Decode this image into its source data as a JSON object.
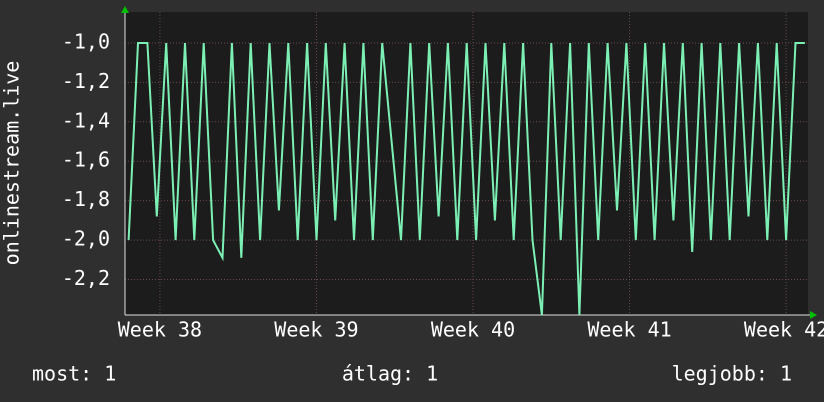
{
  "chart_data": {
    "type": "line",
    "y_label": "onlinestream.live",
    "x": [
      37.8,
      37.86,
      37.92,
      37.98,
      38.04,
      38.1,
      38.16,
      38.22,
      38.28,
      38.34,
      38.4,
      38.46,
      38.52,
      38.58,
      38.64,
      38.7,
      38.76,
      38.82,
      38.88,
      38.94,
      39.0,
      39.06,
      39.12,
      39.18,
      39.24,
      39.3,
      39.36,
      39.42,
      39.48,
      39.54,
      39.6,
      39.66,
      39.72,
      39.78,
      39.84,
      39.9,
      39.96,
      40.02,
      40.08,
      40.14,
      40.2,
      40.26,
      40.32,
      40.38,
      40.44,
      40.5,
      40.56,
      40.62,
      40.68,
      40.74,
      40.8,
      40.86,
      40.92,
      40.98,
      41.04,
      41.1,
      41.16,
      41.22,
      41.28,
      41.34,
      41.4,
      41.46,
      41.52,
      41.58,
      41.64,
      41.7,
      41.76,
      41.82,
      41.88,
      41.94,
      42.0,
      42.06,
      42.12
    ],
    "series": [
      {
        "color": "#7cf0b4",
        "values": [
          -2.0,
          -1.0,
          -1.0,
          -1.88,
          -1.0,
          -2.0,
          -1.0,
          -2.0,
          -1.0,
          -2.0,
          -2.09,
          -1.0,
          -2.09,
          -1.0,
          -2.0,
          -1.0,
          -1.85,
          -1.0,
          -2.0,
          -1.0,
          -2.0,
          -1.0,
          -1.9,
          -1.0,
          -2.0,
          -1.0,
          -2.0,
          -1.0,
          -1.5,
          -2.0,
          -1.0,
          -2.0,
          -1.0,
          -1.88,
          -1.0,
          -2.0,
          -1.0,
          -2.0,
          -1.0,
          -1.9,
          -1.0,
          -2.0,
          -1.0,
          -2.0,
          -2.38,
          -1.0,
          -2.0,
          -1.0,
          -2.38,
          -1.0,
          -2.0,
          -1.0,
          -1.85,
          -1.0,
          -2.0,
          -1.0,
          -2.0,
          -1.0,
          -1.9,
          -1.0,
          -2.06,
          -1.0,
          -2.0,
          -1.0,
          -2.0,
          -1.0,
          -1.88,
          -1.0,
          -2.0,
          -1.0,
          -2.0,
          -1.0,
          -1.0
        ]
      }
    ],
    "xlim": [
      37.777,
      42.14
    ],
    "xticks": [
      {
        "value": 38,
        "label": "Week 38"
      },
      {
        "value": 39,
        "label": "Week 39"
      },
      {
        "value": 40,
        "label": "Week 40"
      },
      {
        "value": 41,
        "label": "Week 41"
      },
      {
        "value": 42,
        "label": "Week 42"
      }
    ],
    "ylim": [
      -2.38,
      -0.843
    ],
    "yticks": [
      {
        "value": -1.0,
        "label": "-1,0"
      },
      {
        "value": -1.2,
        "label": "-1,2"
      },
      {
        "value": -1.4,
        "label": "-1,4"
      },
      {
        "value": -1.6,
        "label": "-1,6"
      },
      {
        "value": -1.8,
        "label": "-1,8"
      },
      {
        "value": -2.0,
        "label": "-2,0"
      },
      {
        "value": -2.2,
        "label": "-2,2"
      }
    ],
    "grid": true,
    "legend": [
      "most: 1",
      "átlag: 1",
      "legjobb: 1"
    ]
  }
}
